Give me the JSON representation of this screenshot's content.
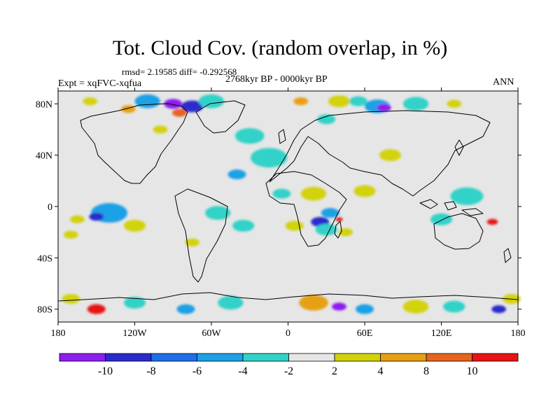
{
  "title": "Tot. Cloud Cov. (random overlap, in %)",
  "stats": "rmsd= 2.19585  diff= -0.292568",
  "period": "2768kyr BP - 0000kyr BP",
  "experiment": "Expt = xqFVC-xqfua",
  "season": "ANN",
  "axes": {
    "lat_ticks": [
      {
        "label": "80N",
        "lat": 80
      },
      {
        "label": "40N",
        "lat": 40
      },
      {
        "label": "0",
        "lat": 0
      },
      {
        "label": "40S",
        "lat": -40
      },
      {
        "label": "80S",
        "lat": -80
      }
    ],
    "lon_ticks": [
      {
        "label": "180",
        "lon": -180
      },
      {
        "label": "120W",
        "lon": -120
      },
      {
        "label": "60W",
        "lon": -60
      },
      {
        "label": "0",
        "lon": 0
      },
      {
        "label": "60E",
        "lon": 60
      },
      {
        "label": "120E",
        "lon": 120
      },
      {
        "label": "180",
        "lon": 180
      }
    ],
    "lat_range": [
      -90,
      90
    ],
    "lon_range": [
      -180,
      180
    ]
  },
  "colorbar": {
    "colors": [
      "#8c1ef0",
      "#2a2acd",
      "#1e6ee6",
      "#1ea0e6",
      "#32d2c8",
      "#e6e6e6",
      "#d2d20a",
      "#e6a014",
      "#e6641e",
      "#e61414"
    ],
    "labels": [
      "-10",
      "-8",
      "-6",
      "-4",
      "-2",
      "2",
      "4",
      "8",
      "10"
    ]
  },
  "anomalies": [
    {
      "lon": -90,
      "lat": 80,
      "level": 0,
      "r": 10
    },
    {
      "lon": -75,
      "lat": 78,
      "level": 1,
      "r": 12
    },
    {
      "lon": -110,
      "lat": 82,
      "level": 3,
      "r": 14
    },
    {
      "lon": -60,
      "lat": 82,
      "level": 4,
      "r": 14
    },
    {
      "lon": -85,
      "lat": 73,
      "level": 8,
      "r": 8
    },
    {
      "lon": -125,
      "lat": 76,
      "level": 7,
      "r": 8
    },
    {
      "lon": -100,
      "lat": 60,
      "level": 6,
      "r": 8
    },
    {
      "lon": -155,
      "lat": 82,
      "level": 6,
      "r": 8
    },
    {
      "lon": -30,
      "lat": 55,
      "level": 4,
      "r": 16
    },
    {
      "lon": -15,
      "lat": 38,
      "level": 4,
      "r": 20
    },
    {
      "lon": -40,
      "lat": 25,
      "level": 3,
      "r": 10
    },
    {
      "lon": 10,
      "lat": 82,
      "level": 7,
      "r": 8
    },
    {
      "lon": 40,
      "lat": 82,
      "level": 6,
      "r": 12
    },
    {
      "lon": 70,
      "lat": 78,
      "level": 3,
      "r": 14
    },
    {
      "lon": 75,
      "lat": 77,
      "level": 0,
      "r": 8
    },
    {
      "lon": 100,
      "lat": 80,
      "level": 4,
      "r": 14
    },
    {
      "lon": 55,
      "lat": 82,
      "level": 4,
      "r": 10
    },
    {
      "lon": 130,
      "lat": 80,
      "level": 6,
      "r": 8
    },
    {
      "lon": 30,
      "lat": 68,
      "level": 4,
      "r": 10
    },
    {
      "lon": 80,
      "lat": 40,
      "level": 6,
      "r": 12
    },
    {
      "lon": 140,
      "lat": 8,
      "level": 4,
      "r": 18
    },
    {
      "lon": 20,
      "lat": 10,
      "level": 6,
      "r": 14
    },
    {
      "lon": 60,
      "lat": 12,
      "level": 6,
      "r": 12
    },
    {
      "lon": -5,
      "lat": 10,
      "level": 4,
      "r": 10
    },
    {
      "lon": -140,
      "lat": -5,
      "level": 3,
      "r": 20
    },
    {
      "lon": -150,
      "lat": -8,
      "level": 1,
      "r": 8
    },
    {
      "lon": -120,
      "lat": -15,
      "level": 6,
      "r": 12
    },
    {
      "lon": -165,
      "lat": -10,
      "level": 6,
      "r": 8
    },
    {
      "lon": -55,
      "lat": -5,
      "level": 4,
      "r": 14
    },
    {
      "lon": -35,
      "lat": -15,
      "level": 4,
      "r": 12
    },
    {
      "lon": -75,
      "lat": -28,
      "level": 6,
      "r": 8
    },
    {
      "lon": 25,
      "lat": -12,
      "level": 1,
      "r": 10
    },
    {
      "lon": 33,
      "lat": -5,
      "level": 3,
      "r": 10
    },
    {
      "lon": 30,
      "lat": -18,
      "level": 4,
      "r": 12
    },
    {
      "lon": 40,
      "lat": -10,
      "level": 9,
      "r": 4
    },
    {
      "lon": 45,
      "lat": -20,
      "level": 6,
      "r": 8
    },
    {
      "lon": 5,
      "lat": -15,
      "level": 6,
      "r": 10
    },
    {
      "lon": 120,
      "lat": -10,
      "level": 4,
      "r": 12
    },
    {
      "lon": 160,
      "lat": -12,
      "level": 9,
      "r": 6
    },
    {
      "lon": -170,
      "lat": -22,
      "level": 6,
      "r": 8
    },
    {
      "lon": -150,
      "lat": -80,
      "level": 9,
      "r": 10
    },
    {
      "lon": -120,
      "lat": -75,
      "level": 4,
      "r": 12
    },
    {
      "lon": -80,
      "lat": -80,
      "level": 3,
      "r": 10
    },
    {
      "lon": -45,
      "lat": -75,
      "level": 4,
      "r": 14
    },
    {
      "lon": 20,
      "lat": -75,
      "level": 7,
      "r": 16
    },
    {
      "lon": 40,
      "lat": -78,
      "level": 0,
      "r": 8
    },
    {
      "lon": 60,
      "lat": -80,
      "level": 3,
      "r": 10
    },
    {
      "lon": 100,
      "lat": -78,
      "level": 6,
      "r": 14
    },
    {
      "lon": 130,
      "lat": -78,
      "level": 4,
      "r": 12
    },
    {
      "lon": 165,
      "lat": -80,
      "level": 1,
      "r": 8
    },
    {
      "lon": 175,
      "lat": -72,
      "level": 6,
      "r": 10
    },
    {
      "lon": -170,
      "lat": -72,
      "level": 6,
      "r": 10
    }
  ]
}
